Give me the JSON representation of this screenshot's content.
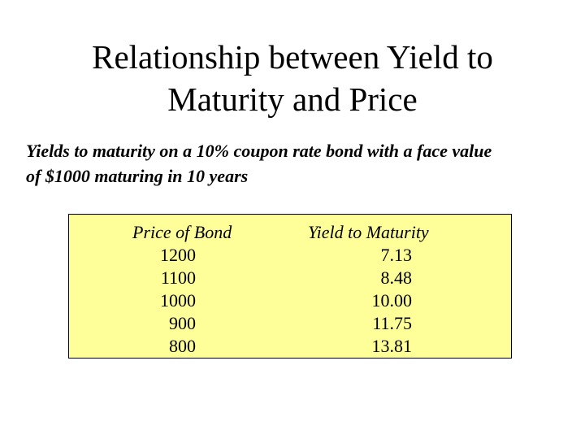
{
  "slide": {
    "title_lines": [
      "Relationship between Yield to",
      "Maturity and Price"
    ],
    "subtitle_lines": [
      "Yields to maturity on a 10% coupon rate bond with a face value",
      "of $1000 maturing in 10 years"
    ]
  },
  "table": {
    "headers": {
      "price": "Price of Bond",
      "ytm": "Yield to Maturity"
    },
    "rows": [
      {
        "price": "1200",
        "ytm": "7.13"
      },
      {
        "price": "1100",
        "ytm": "8.48"
      },
      {
        "price": "1000",
        "ytm": "10.00"
      },
      {
        "price": "900",
        "ytm": "11.75"
      },
      {
        "price": "800",
        "ytm": "13.81"
      }
    ],
    "background_color": "#ffff99"
  }
}
